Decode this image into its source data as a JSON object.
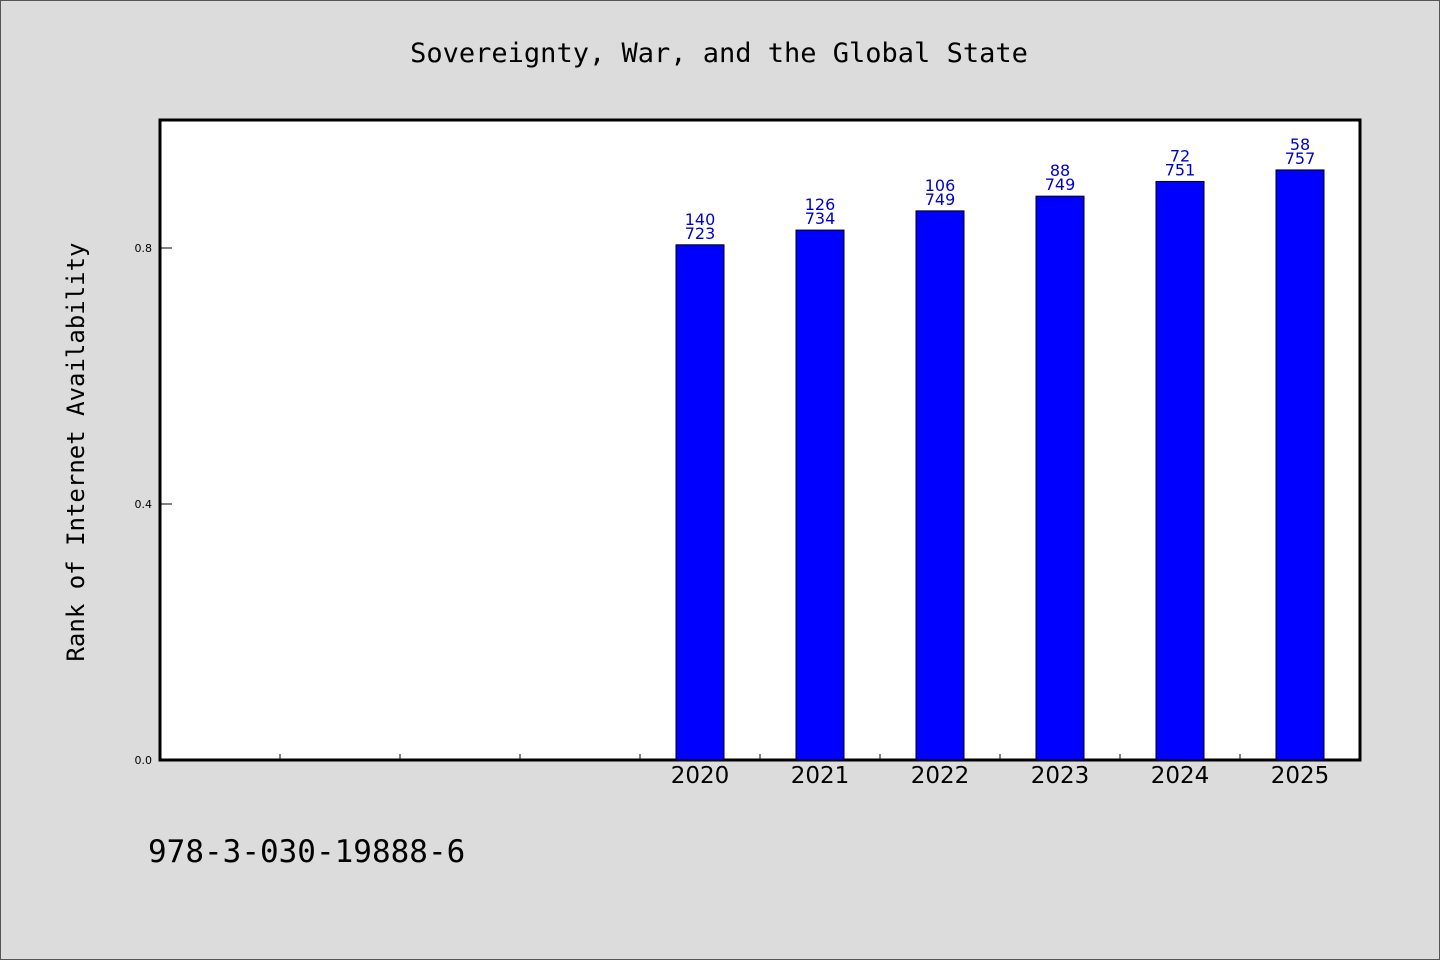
{
  "chart_data": {
    "type": "bar",
    "title": "Sovereignty, War, and the Global State",
    "ylabel": "Rank of Internet Availability",
    "xlabel": "",
    "ylim": [
      0,
      1.0
    ],
    "yticks": [
      "0.0",
      "0.4",
      "0.8"
    ],
    "ytick_values": [
      0.0,
      0.4,
      0.8
    ],
    "num_slots": 10,
    "slot_offset": 4,
    "categories": [
      "2020",
      "2021",
      "2022",
      "2023",
      "2024",
      "2025"
    ],
    "values": [
      0.805,
      0.828,
      0.858,
      0.881,
      0.904,
      0.922
    ],
    "labels_top": [
      "140",
      "126",
      "106",
      "88",
      "72",
      "58"
    ],
    "labels_bottom": [
      "723",
      "734",
      "749",
      "749",
      "751",
      "757"
    ],
    "bar_color": "#0000ff",
    "label_color": "#0000cc",
    "grid": false
  },
  "footer": {
    "isbn": "978-3-030-19888-6"
  },
  "colors": {
    "background": "#dcdcdc",
    "plot_background": "#ffffff"
  }
}
